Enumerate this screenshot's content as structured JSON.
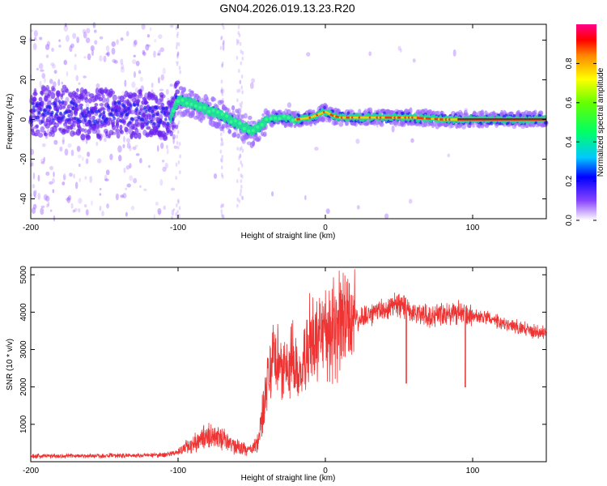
{
  "title": "GN04.2026.019.13.23.R20",
  "chart_data": [
    {
      "type": "heatmap",
      "xlabel": "Height of straight line (km)",
      "ylabel": "Frequency (Hz)",
      "xlim": [
        -200,
        150
      ],
      "ylim": [
        -50,
        48
      ],
      "xticks": [
        -200,
        -100,
        0,
        100
      ],
      "xtick_labels": [
        "-200",
        "-100",
        "0",
        "100"
      ],
      "yticks": [
        -40,
        -20,
        0,
        20,
        40
      ],
      "ytick_labels": [
        "-40",
        "-20",
        "0",
        "20",
        "40"
      ],
      "ridge": {
        "x": [
          -200,
          -180,
          -160,
          -140,
          -120,
          -105,
          -100,
          -90,
          -80,
          -70,
          -60,
          -55,
          -50,
          -45,
          -40,
          -30,
          -20,
          -10,
          0,
          5,
          10,
          20,
          40,
          60,
          80,
          90,
          100,
          150
        ],
        "y": [
          3,
          5,
          2,
          4,
          2,
          1,
          10,
          8,
          5,
          2,
          -2,
          -4,
          -6,
          -4,
          0,
          1,
          0,
          1,
          4,
          2,
          1,
          1,
          1,
          1,
          0,
          0,
          0,
          0
        ]
      },
      "colorbar": {
        "label": "Normalized spectral amplitude",
        "range": [
          0,
          1
        ],
        "ticks": [
          "0.0",
          "0.2",
          "0.4",
          "0.6",
          "0.8"
        ]
      }
    },
    {
      "type": "line",
      "xlabel": "Height of straight line (km)",
      "ylabel": "SNR (10 * v/v)",
      "xlim": [
        -200,
        150
      ],
      "ylim": [
        0,
        5200
      ],
      "xticks": [
        -200,
        -100,
        0,
        100
      ],
      "xtick_labels": [
        "-200",
        "-100",
        "0",
        "100"
      ],
      "yticks": [
        1000,
        2000,
        3000,
        4000,
        5000
      ],
      "ytick_labels": [
        "1000",
        "2000",
        "3000",
        "4000",
        "5000"
      ],
      "series": [
        {
          "name": "SNR",
          "color": "#ee3333",
          "x": [
            -200,
            -150,
            -110,
            -100,
            -90,
            -80,
            -70,
            -60,
            -50,
            -45,
            -40,
            -35,
            -30,
            -25,
            -20,
            -15,
            -10,
            -5,
            0,
            10,
            20,
            30,
            40,
            50,
            60,
            70,
            80,
            90,
            100,
            110,
            120,
            130,
            140,
            150
          ],
          "y": [
            150,
            160,
            180,
            250,
            500,
            700,
            600,
            400,
            300,
            600,
            2000,
            2800,
            2500,
            2400,
            2400,
            2600,
            3100,
            3200,
            3300,
            3600,
            3800,
            3900,
            4100,
            4200,
            4000,
            3900,
            4000,
            3950,
            3900,
            3850,
            3700,
            3600,
            3500,
            3450
          ]
        }
      ]
    }
  ]
}
